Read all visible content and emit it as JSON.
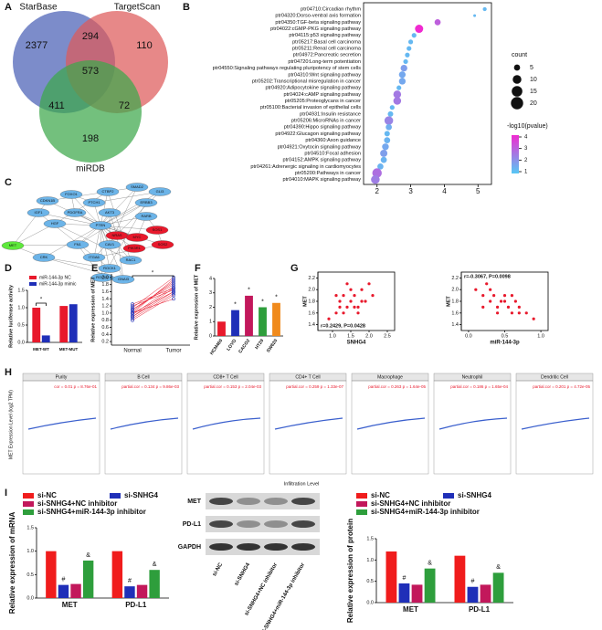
{
  "panel_labels": [
    "A",
    "B",
    "C",
    "D",
    "E",
    "F",
    "G",
    "H",
    "I"
  ],
  "venn": {
    "sets": [
      "StarBase",
      "TargetScan",
      "miRDB"
    ],
    "colors": [
      "#4a5fb5",
      "#de5a5a",
      "#3da84b"
    ],
    "counts": {
      "starbase_only": 2377,
      "starbase_targetscan": 294,
      "targetscan_only": 110,
      "all": 573,
      "starbase_mirdb": 411,
      "targetscan_mirdb": 72,
      "mirdb_only": 198
    }
  },
  "dotplot": {
    "type": "scatter",
    "pathways": [
      "ptr04710:Circadian rhythm",
      "ptr04320:Dorso-ventral axis formation",
      "ptr04350:TGF-beta signaling pathway",
      "ptr04022:cGMP-PKG signaling pathway",
      "ptr04115:p53 signaling pathway",
      "ptr05217:Basal cell carcinoma",
      "ptr05211:Renal cell carcinoma",
      "ptr04972:Pancreatic secretion",
      "ptr04720:Long-term potentiation",
      "ptr04550:Signaling pathways regulating pluripotency of stem cells",
      "ptr04310:Wnt signaling pathway",
      "ptr05202:Transcriptional misregulation in cancer",
      "ptr04920:Adipocytokine signaling pathway",
      "ptr04024:cAMP signaling pathway",
      "ptr05205:Proteoglycans in cancer",
      "ptr05100:Bacterial invasion of epithelial cells",
      "ptr04931:Insulin resistance",
      "ptr05206:MicroRNAs in cancer",
      "ptr04390:Hippo signaling pathway",
      "ptr04922:Glucagon signaling pathway",
      "ptr04360:Axon guidance",
      "ptr04921:Oxytocin signaling pathway",
      "ptr04510:Focal adhesion",
      "ptr04152:AMPK signaling pathway",
      "ptr04261:Adrenergic signaling in cardiomyocytes",
      "ptr05200:Pathways in cancer",
      "ptr04010:MAPK signaling pathway"
    ],
    "x": [
      5.2,
      4.9,
      3.8,
      3.25,
      3.1,
      3.0,
      2.95,
      2.9,
      2.85,
      2.8,
      2.75,
      2.75,
      2.65,
      2.6,
      2.6,
      2.45,
      2.4,
      2.35,
      2.35,
      2.3,
      2.3,
      2.25,
      2.2,
      2.2,
      2.1,
      2.0,
      1.95
    ],
    "counts": [
      2,
      1,
      5,
      9,
      3,
      3,
      3,
      3,
      3,
      6,
      6,
      6,
      3,
      8,
      8,
      3,
      4,
      10,
      5,
      4,
      5,
      6,
      7,
      5,
      5,
      12,
      10
    ],
    "pvalues": [
      1.3,
      1.3,
      3.0,
      4.0,
      1.3,
      1.3,
      1.3,
      1.3,
      1.3,
      1.8,
      1.6,
      1.6,
      1.3,
      2.5,
      2.5,
      1.3,
      1.3,
      2.3,
      1.5,
      1.3,
      1.4,
      1.6,
      1.8,
      1.4,
      1.4,
      2.7,
      2.4
    ],
    "xlim": [
      1.6,
      5.4
    ],
    "xticks": [
      2,
      3,
      4,
      5
    ],
    "count_title": "count",
    "count_ticks": [
      5,
      10,
      15,
      20
    ],
    "color_title": "-log10(pvalue)",
    "color_ticks": [
      1,
      2,
      3,
      4
    ],
    "color_low": "#56c8f5",
    "color_high": "#f02ad0"
  },
  "network": {
    "nodes": [
      {
        "label": "MET",
        "color": "#5ee83c"
      },
      {
        "label": "CDKN1B",
        "color": "#6cb4e8"
      },
      {
        "label": "FOXO1",
        "color": "#6cb4e8"
      },
      {
        "label": "CTBP2",
        "color": "#6cb4e8"
      },
      {
        "label": "SMAD2",
        "color": "#6cb4e8"
      },
      {
        "label": "GLI3",
        "color": "#6cb4e8"
      },
      {
        "label": "ERBB3",
        "color": "#6cb4e8"
      },
      {
        "label": "IGF1",
        "color": "#6cb4e8"
      },
      {
        "label": "PTCH1",
        "color": "#6cb4e8"
      },
      {
        "label": "PTEN",
        "color": "#6cb4e8"
      },
      {
        "label": "AKT3",
        "color": "#6cb4e8"
      },
      {
        "label": "RARB",
        "color": "#6cb4e8"
      },
      {
        "label": "HGF",
        "color": "#6cb4e8"
      },
      {
        "label": "NRAS",
        "color": "#e8192c"
      },
      {
        "label": "PDGFRA",
        "color": "#6cb4e8"
      },
      {
        "label": "FN1",
        "color": "#6cb4e8"
      },
      {
        "label": "CAV1",
        "color": "#6cb4e8"
      },
      {
        "label": "MYC",
        "color": "#e8192c"
      },
      {
        "label": "PIK3R1",
        "color": "#e8192c"
      },
      {
        "label": "CRK",
        "color": "#6cb4e8"
      },
      {
        "label": "ITGA6",
        "color": "#6cb4e8"
      },
      {
        "label": "RAC1",
        "color": "#6cb4e8"
      },
      {
        "label": "ROCK1",
        "color": "#6cb4e8"
      },
      {
        "label": "SOS1",
        "color": "#e8192c"
      },
      {
        "label": "ROCK2",
        "color": "#6cb4e8"
      },
      {
        "label": "GNAI3",
        "color": "#6cb4e8"
      },
      {
        "label": "SOS2",
        "color": "#e8192c"
      }
    ]
  },
  "luciferase": {
    "type": "bar",
    "ylabel": "Relative luciferase activity",
    "categories": [
      "MET-WT",
      "MET-MUT"
    ],
    "series": [
      {
        "name": "miR-144-3p NC",
        "color": "#e8192c",
        "values": [
          1.0,
          1.05
        ]
      },
      {
        "name": "miR-144-3p mimic",
        "color": "#1f2fb8",
        "values": [
          0.2,
          1.1
        ]
      }
    ],
    "ylim": [
      0,
      1.5
    ],
    "yticks": [
      {
        "value": 0,
        "label": "0.0"
      },
      {
        "value": 0.5,
        "label": "0.5"
      },
      {
        "value": 1,
        "label": "1.0"
      },
      {
        "value": 1.5,
        "label": "1.5"
      }
    ],
    "significance": "*"
  },
  "paired": {
    "type": "paired",
    "ylabel": "Relative expression of MET",
    "categories": [
      "Normal",
      "Tumor"
    ],
    "normal": [
      0.8,
      0.9,
      1.0,
      1.05,
      1.1,
      1.0,
      0.95,
      1.15,
      1.2,
      1.1,
      0.85,
      1.0,
      1.25,
      0.9
    ],
    "tumor": [
      1.5,
      1.7,
      1.6,
      1.9,
      1.8,
      1.4,
      1.75,
      2.0,
      1.65,
      1.85,
      1.55,
      1.95,
      1.7,
      1.6
    ],
    "ylim": [
      0.1,
      2.1
    ],
    "yticks": [
      {
        "value": 0.2,
        "label": "0.2"
      },
      {
        "value": 0.4,
        "label": "0.4"
      },
      {
        "value": 0.6,
        "label": "0.6"
      },
      {
        "value": 0.8,
        "label": "0.8"
      },
      {
        "value": 1,
        "label": "1.0"
      },
      {
        "value": 1.2,
        "label": "1.2"
      },
      {
        "value": 1.4,
        "label": "1.4"
      },
      {
        "value": 1.6,
        "label": "1.6"
      },
      {
        "value": 1.8,
        "label": "1.8"
      },
      {
        "value": 2,
        "label": "2.0"
      }
    ],
    "significance": "*"
  },
  "cells": {
    "type": "bar",
    "ylabel": "Relative expression of MET",
    "categories": [
      "HCM460",
      "LOVO",
      "CACO2",
      "HT29",
      "SW620"
    ],
    "values": [
      1.0,
      1.8,
      2.8,
      2.0,
      2.3
    ],
    "colors": [
      "#e8192c",
      "#1f2fb8",
      "#c2185b",
      "#2e9e3c",
      "#f08a1c"
    ],
    "annotations": [
      null,
      "*",
      "*",
      "*",
      "*"
    ],
    "ylim": [
      0,
      4
    ],
    "yticks": [
      0,
      1,
      2,
      3,
      4
    ]
  },
  "correlations": [
    {
      "type": "scatter",
      "xlabel": "SNHG4",
      "ylabel": "MET",
      "annotation": "r=0.2429, P=0.0428",
      "color": "#e8192c",
      "x": [
        0.9,
        1.1,
        1.2,
        1.3,
        1.4,
        1.5,
        1.5,
        1.6,
        1.7,
        1.8,
        1.9,
        2.0,
        1.3,
        1.6,
        1.1,
        1.7,
        1.4,
        2.1,
        1.2,
        1.8
      ],
      "y": [
        1.5,
        1.6,
        1.8,
        1.9,
        1.7,
        1.8,
        2.0,
        1.9,
        1.7,
        2.0,
        1.8,
        2.1,
        1.6,
        1.7,
        1.9,
        1.6,
        2.1,
        1.9,
        1.7,
        1.8
      ],
      "xlim": [
        0.6,
        2.7
      ],
      "xticks": [
        {
          "value": 1,
          "label": "1.0"
        },
        {
          "value": 1.5,
          "label": "1.5"
        },
        {
          "value": 2,
          "label": "2.0"
        },
        {
          "value": 2.5,
          "label": "2.5"
        }
      ],
      "ylim": [
        1.3,
        2.3
      ],
      "yticks": [
        {
          "value": 1.4,
          "label": "1.4"
        },
        {
          "value": 1.6,
          "label": "1.6"
        },
        {
          "value": 1.8,
          "label": "1.8"
        },
        {
          "value": 2,
          "label": "2.0"
        },
        {
          "value": 2.2,
          "label": "2.2"
        }
      ]
    },
    {
      "type": "scatter",
      "xlabel": "miR-144-3p",
      "ylabel": "MET",
      "annotation": "r=-0.3067, P=0.0098",
      "color": "#e8192c",
      "x": [
        0.1,
        0.2,
        0.25,
        0.3,
        0.35,
        0.4,
        0.45,
        0.5,
        0.55,
        0.6,
        0.65,
        0.7,
        0.8,
        0.9,
        0.3,
        0.5,
        0.4,
        0.6,
        0.2,
        0.7
      ],
      "y": [
        2.0,
        1.9,
        2.1,
        1.8,
        1.9,
        1.7,
        1.8,
        1.9,
        1.7,
        1.6,
        1.8,
        1.7,
        1.6,
        1.5,
        2.0,
        1.8,
        1.6,
        1.9,
        1.7,
        1.6
      ],
      "xlim": [
        -0.1,
        1.1
      ],
      "xticks": [
        {
          "value": 0,
          "label": "0.0"
        },
        {
          "value": 0.5,
          "label": "0.5"
        },
        {
          "value": 1,
          "label": "1.0"
        }
      ],
      "ylim": [
        1.3,
        2.3
      ],
      "yticks": [
        {
          "value": 1.4,
          "label": "1.4"
        },
        {
          "value": 1.6,
          "label": "1.6"
        },
        {
          "value": 1.8,
          "label": "1.8"
        },
        {
          "value": 2,
          "label": "2.0"
        },
        {
          "value": 2.2,
          "label": "2.2"
        }
      ]
    }
  ],
  "timer": {
    "ylabel": "MET Expression Level (log2 TPM)",
    "xlabel": "Infiltration Level",
    "panels": [
      {
        "title": "Purity",
        "annotation": "cor = 0.01 p = 8.76e-01"
      },
      {
        "title": "B Cell",
        "annotation": "partial.cor = 0.134 p = 9.86e-03"
      },
      {
        "title": "CD8+ T Cell",
        "annotation": "partial.cor = 0.153 p = 2.04e-03"
      },
      {
        "title": "CD4+ T Cell",
        "annotation": "partial.cor = 0.259 p = 1.33e-07"
      },
      {
        "title": "Macrophage",
        "annotation": "partial.cor = 0.263 p = 1.64e-05"
      },
      {
        "title": "Neutrophil",
        "annotation": "partial.cor = 0.186 p = 1.65e-04"
      },
      {
        "title": "Dendritic Cell",
        "annotation": "partial.cor = 0.201 p = 4.72e-05"
      }
    ]
  },
  "mrna": {
    "type": "bar",
    "ylabel": "Relative expression of mRNA",
    "categories": [
      "MET",
      "PD-L1"
    ],
    "series": [
      {
        "name": "si-NC",
        "color": "#f01c1c",
        "values": [
          1.0,
          1.0
        ],
        "annotations": [
          null,
          null
        ]
      },
      {
        "name": "si-SNHG4",
        "color": "#1f2fb8",
        "values": [
          0.28,
          0.25
        ],
        "annotations": [
          "#",
          "#"
        ]
      },
      {
        "name": "si-SNHG4+NC inhibitor",
        "color": "#c2185b",
        "values": [
          0.3,
          0.28
        ],
        "annotations": [
          null,
          null
        ]
      },
      {
        "name": "si-SNHG4+miR-144-3p inhibitor",
        "color": "#2e9e3c",
        "values": [
          0.8,
          0.6
        ],
        "annotations": [
          "&",
          "&"
        ]
      }
    ],
    "ylim": [
      0,
      1.5
    ],
    "yticks": [
      {
        "value": 0,
        "label": "0.0"
      },
      {
        "value": 0.5,
        "label": "0.5"
      },
      {
        "value": 1,
        "label": "1.0"
      },
      {
        "value": 1.5,
        "label": "1.5"
      }
    ]
  },
  "blot": {
    "rows": [
      "MET",
      "PD-L1",
      "GAPDH"
    ],
    "lanes": [
      "si-NC",
      "si-SNHG4",
      "si-SNHG4+NC inhibitor",
      "si-SNHG4+miR-144-3p inhibitor"
    ]
  },
  "protein": {
    "type": "bar",
    "ylabel": "Relative expression of protein",
    "categories": [
      "MET",
      "PD-L1"
    ],
    "series": [
      {
        "name": "si-NC",
        "color": "#f01c1c",
        "values": [
          1.2,
          1.1
        ],
        "annotations": [
          null,
          null
        ]
      },
      {
        "name": "si-SNHG4",
        "color": "#1f2fb8",
        "values": [
          0.45,
          0.37
        ],
        "annotations": [
          "#",
          "#"
        ]
      },
      {
        "name": "si-SNHG4+NC inhibitor",
        "color": "#c2185b",
        "values": [
          0.42,
          0.42
        ],
        "annotations": [
          null,
          null
        ]
      },
      {
        "name": "si-SNHG4+miR-144-3p inhibitor",
        "color": "#2e9e3c",
        "values": [
          0.8,
          0.7
        ],
        "annotations": [
          "&",
          "&"
        ]
      }
    ],
    "ylim": [
      0,
      1.5
    ],
    "yticks": [
      {
        "value": 0,
        "label": "0.0"
      },
      {
        "value": 0.5,
        "label": "0.5"
      },
      {
        "value": 1,
        "label": "1.0"
      },
      {
        "value": 1.5,
        "label": "1.5"
      }
    ]
  }
}
